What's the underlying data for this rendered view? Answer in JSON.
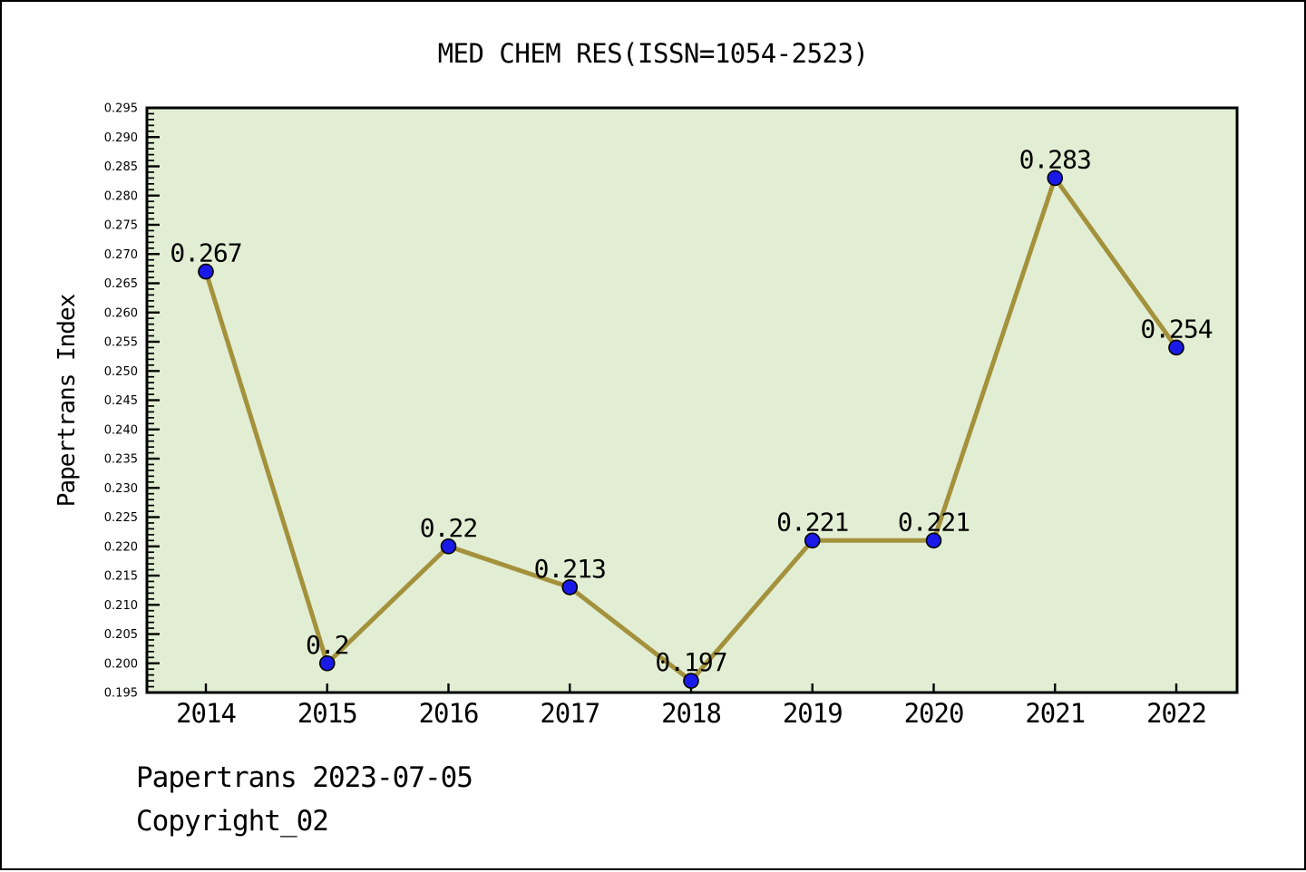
{
  "page": {
    "title": "MED CHEM RES(ISSN=1054-2523)",
    "footer_line1": "Papertrans 2023-07-05",
    "footer_line2": "Copyright_02"
  },
  "chart_data": {
    "type": "line",
    "title": "MED CHEM RES(ISSN=1054-2523)",
    "xlabel": "",
    "ylabel": "Papertrans Index",
    "categories": [
      "2014",
      "2015",
      "2016",
      "2017",
      "2018",
      "2019",
      "2020",
      "2021",
      "2022"
    ],
    "values": [
      0.267,
      0.2,
      0.22,
      0.213,
      0.197,
      0.221,
      0.221,
      0.283,
      0.254
    ],
    "point_labels": [
      "0.267",
      "0.2",
      "0.22",
      "0.213",
      "0.197",
      "0.221",
      "0.221",
      "0.283",
      "0.254"
    ],
    "ylim": [
      0.195,
      0.295
    ],
    "ytick_labels": [
      "0.195",
      "0.200",
      "0.205",
      "0.210",
      "0.215",
      "0.220",
      "0.225",
      "0.230",
      "0.235",
      "0.240",
      "0.245",
      "0.250",
      "0.255",
      "0.260",
      "0.265",
      "0.270",
      "0.275",
      "0.280",
      "0.285",
      "0.290",
      "0.295"
    ],
    "ytick_step": 0.005,
    "yminor_step": 0.001,
    "grid": false,
    "legend": "none",
    "marker": "circle",
    "colors": {
      "plot_bg": "#e2eed3",
      "line": "#a3913c",
      "marker_fill": "#1a1ae8",
      "marker_edge": "#000000",
      "axis": "#000000",
      "text": "#000000",
      "page_bg": "#ffffff"
    }
  }
}
